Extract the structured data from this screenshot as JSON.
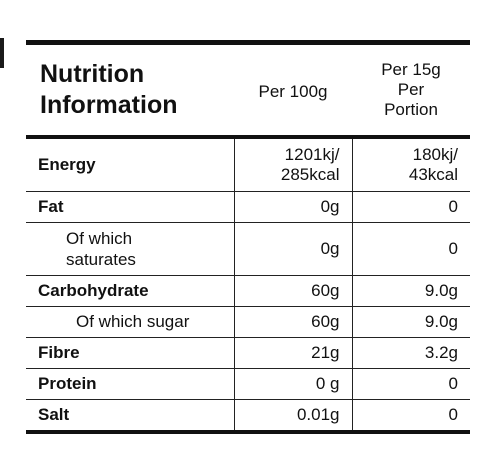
{
  "header": {
    "title_line1": "Nutrition",
    "title_line2": "Information",
    "col_per100": "Per 100g",
    "col_portion_line1": "Per 15g",
    "col_portion_line2": "Per",
    "col_portion_line3": "Portion"
  },
  "rows": [
    {
      "name": "Energy",
      "per100_line1": "1201kj/",
      "per100_line2": "285kcal",
      "portion_line1": "180kj/",
      "portion_line2": "43kcal"
    },
    {
      "name": "Fat",
      "per100": "0g",
      "portion": "0"
    },
    {
      "name_line1": "Of which",
      "name_line2": "saturates",
      "per100": "0g",
      "portion": "0"
    },
    {
      "name": "Carbohydrate",
      "per100": "60g",
      "portion": "9.0g"
    },
    {
      "name": "Of which sugar",
      "per100": "60g",
      "portion": "9.0g"
    },
    {
      "name": "Fibre",
      "per100": "21g",
      "portion": "3.2g"
    },
    {
      "name": "Protein",
      "per100": "0 g",
      "portion": "0"
    },
    {
      "name": "Salt",
      "per100": "0.01g",
      "portion": "0"
    }
  ]
}
